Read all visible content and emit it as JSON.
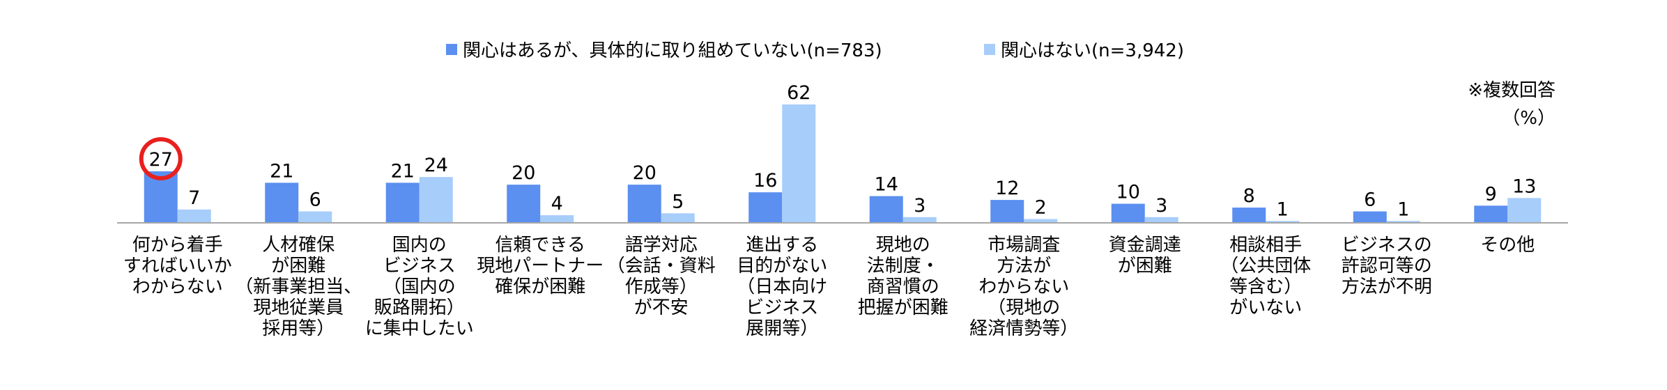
{
  "legend": {
    "s1": "関心はあるが、具体的に取り組めていない(n=783)",
    "s2": "関心はない(n=3,942)"
  },
  "note": {
    "multiple": "※複数回答",
    "unit": "（%）"
  },
  "colors": {
    "s1": "#5b8ff0",
    "s2": "#a7cdfa",
    "highlight": "#e8201e",
    "axis": "#a6a6a6"
  },
  "chart_data": {
    "type": "bar",
    "categories": [
      [
        "何から着手",
        "すればいいか",
        "わからない"
      ],
      [
        "人材確保",
        "が困難",
        "（新事業担当、",
        "現地従業員",
        "採用等）"
      ],
      [
        "国内の",
        "ビジネス",
        "（国内の",
        "販路開拓）",
        "に集中したい"
      ],
      [
        "信頼できる",
        "現地パートナー",
        "確保が困難"
      ],
      [
        "語学対応",
        "（会話・資料",
        "作成等）",
        "が不安"
      ],
      [
        "進出する",
        "目的がない",
        "（日本向け",
        "ビジネス",
        "展開等）"
      ],
      [
        "現地の",
        "法制度・",
        "商習慣の",
        "把握が困難"
      ],
      [
        "市場調査",
        "方法が",
        "わからない",
        "（現地の",
        "経済情勢等）"
      ],
      [
        "資金調達",
        "が困難"
      ],
      [
        "相談相手",
        "（公共団体",
        "等含む）",
        "がいない"
      ],
      [
        "ビジネスの",
        "許認可等の",
        "方法が不明"
      ],
      [
        "その他"
      ]
    ],
    "series": [
      {
        "name": "関心はあるが、具体的に取り組めていない(n=783)",
        "values": [
          27,
          21,
          21,
          20,
          20,
          16,
          14,
          12,
          10,
          8,
          6,
          9
        ]
      },
      {
        "name": "関心はない(n=3,942)",
        "values": [
          7,
          6,
          24,
          4,
          5,
          62,
          3,
          2,
          3,
          1,
          1,
          13
        ]
      }
    ],
    "ylim": [
      0,
      62
    ],
    "highlight": {
      "series": 0,
      "index": 0
    },
    "legend_position": "top",
    "grid": false
  }
}
